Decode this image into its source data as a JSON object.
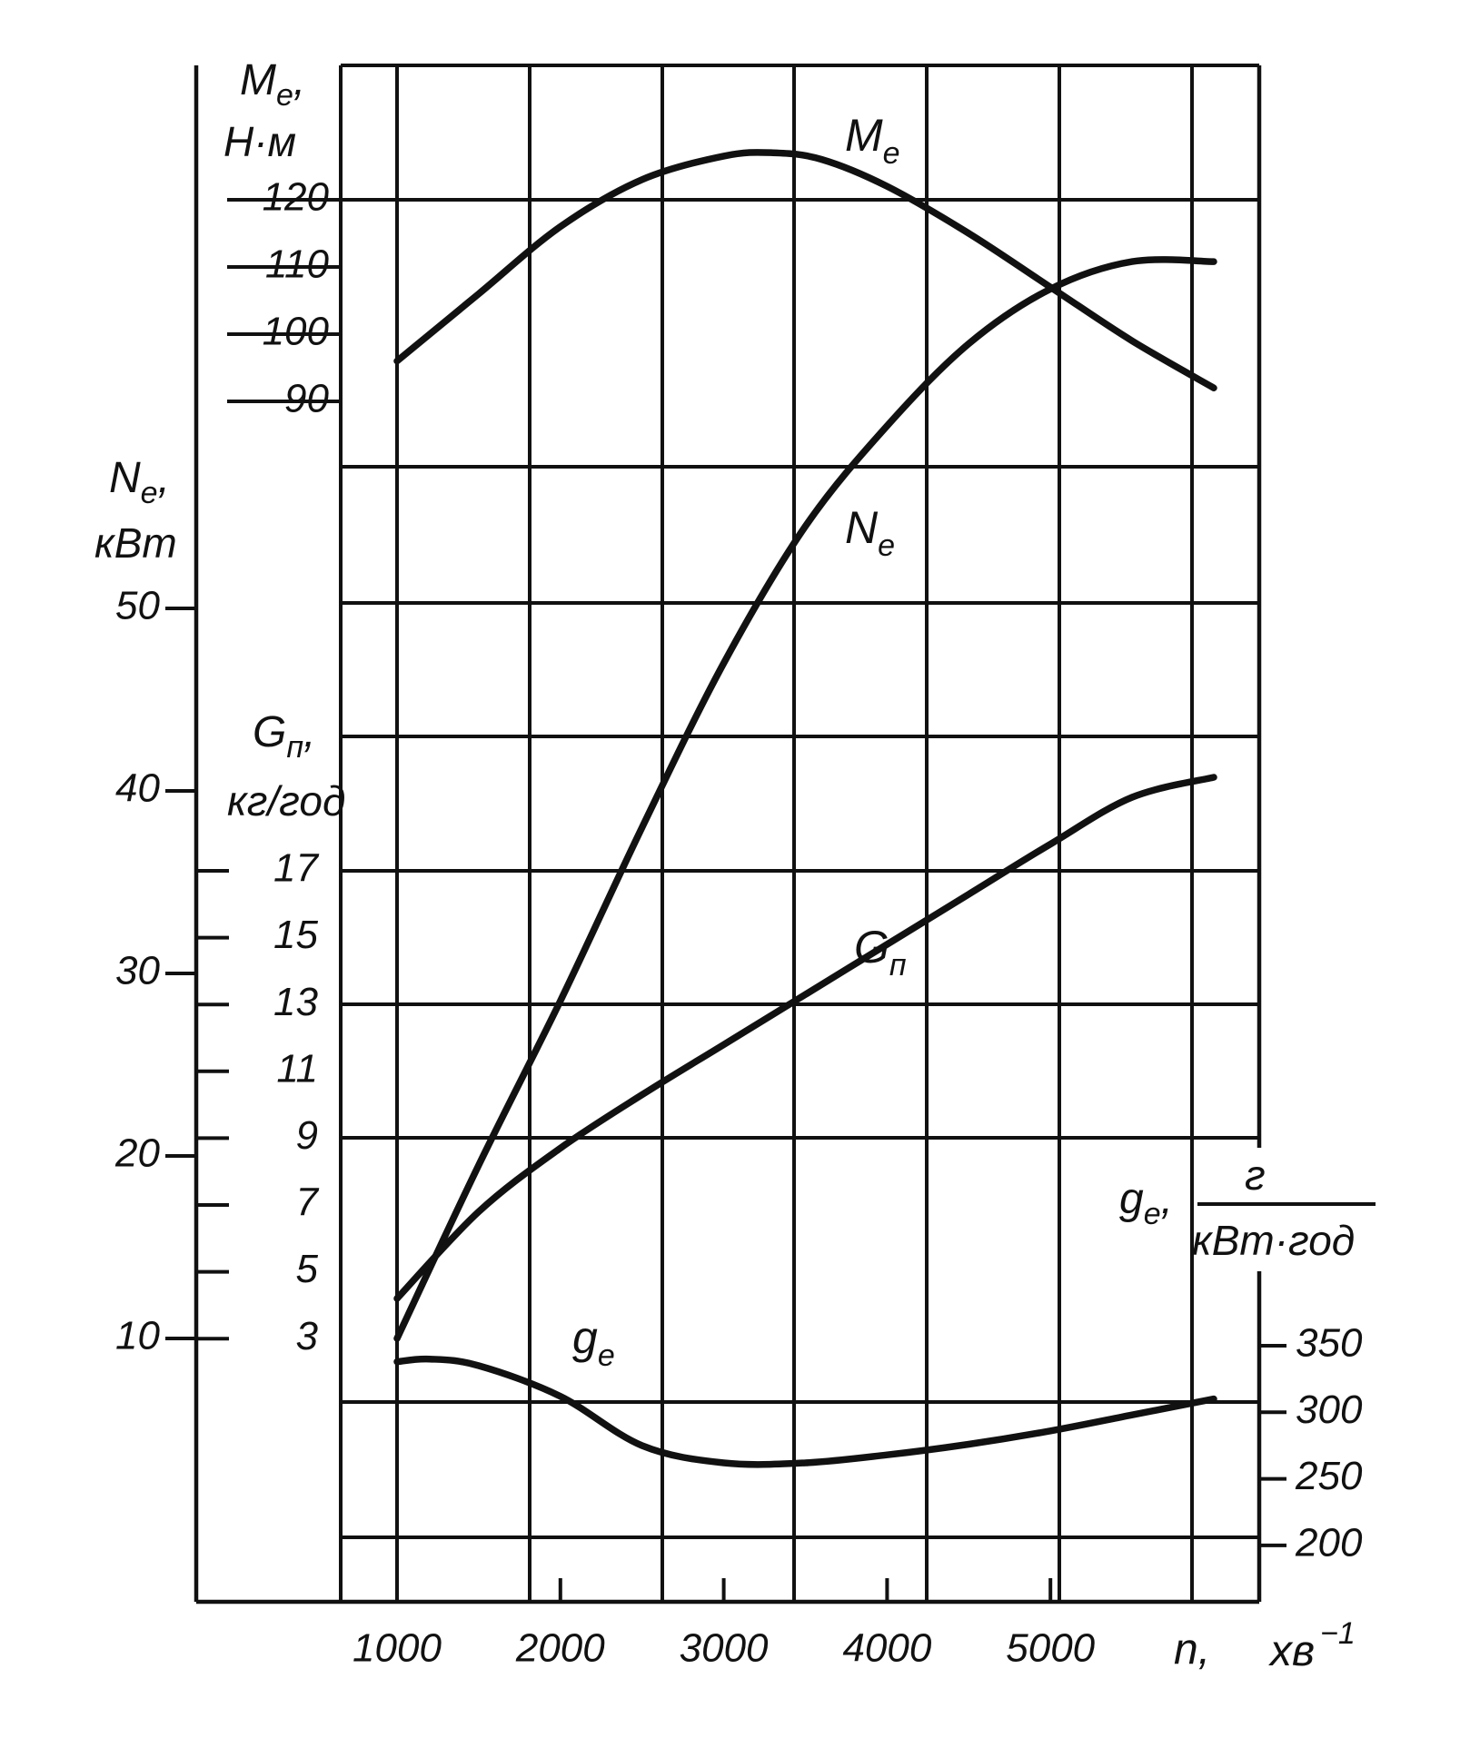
{
  "chart_data": {
    "type": "line",
    "x_axis": {
      "label": "n,",
      "unit": "хв",
      "unit_exp": "−1",
      "ticks": [
        1000,
        2000,
        3000,
        4000,
        5000
      ],
      "tick_labels": [
        "1000",
        "2000",
        "3000",
        "4000",
        "5000"
      ]
    },
    "axes": {
      "Me": {
        "name": "M",
        "sub": "e",
        "comma": ",",
        "unit": "Н·м",
        "ticks": [
          120,
          110,
          100,
          90
        ],
        "tick_labels": [
          "120",
          "110",
          "100",
          "90"
        ]
      },
      "Ne": {
        "name": "N",
        "sub": "e",
        "comma": ",",
        "unit": "кВт",
        "ticks": [
          50,
          40,
          30,
          20,
          10
        ],
        "tick_labels": [
          "50",
          "40",
          "30",
          "20",
          "10"
        ]
      },
      "Gp": {
        "name": "G",
        "sub": "п",
        "comma": ",",
        "unit": "кг/год",
        "ticks": [
          17,
          15,
          13,
          11,
          9,
          7,
          5,
          3
        ],
        "tick_labels": [
          "17",
          "15",
          "13",
          "11",
          "9",
          "7",
          "5",
          "3"
        ]
      },
      "ge": {
        "name": "g",
        "sub": "e",
        "comma": ",",
        "unit_num": "г",
        "unit_den": "кВт·год",
        "ticks": [
          350,
          300,
          250,
          200
        ],
        "tick_labels": [
          "350",
          "300",
          "250",
          "200"
        ]
      }
    },
    "series": [
      {
        "name": "M",
        "sub": "e",
        "axis": "Me",
        "x": [
          1000,
          1500,
          2000,
          2500,
          3000,
          3300,
          3600,
          4000,
          4500,
          5000,
          5500,
          6000
        ],
        "y": [
          96,
          106,
          116,
          123,
          126.5,
          127,
          126,
          122,
          115,
          107,
          99,
          92
        ]
      },
      {
        "name": "N",
        "sub": "e",
        "axis": "Ne",
        "x": [
          1000,
          1500,
          2000,
          2500,
          3000,
          3500,
          4000,
          4500,
          5000,
          5500,
          6000
        ],
        "y": [
          10,
          19.5,
          28.5,
          38,
          47,
          54.5,
          60,
          64.5,
          67.5,
          69,
          69
        ]
      },
      {
        "name": "G",
        "sub": "п",
        "axis": "Gp",
        "x": [
          1000,
          1500,
          2000,
          2500,
          3000,
          3500,
          4000,
          4500,
          5000,
          5500,
          6000
        ],
        "y": [
          4.2,
          6.8,
          8.7,
          10.3,
          11.8,
          13.3,
          14.8,
          16.3,
          17.8,
          19.2,
          19.8
        ]
      },
      {
        "name": "g",
        "sub": "e",
        "axis": "ge",
        "x": [
          1000,
          1200,
          1500,
          2000,
          2500,
          3000,
          3500,
          4000,
          4500,
          5000,
          5500,
          6000
        ],
        "y": [
          338,
          340,
          335,
          312,
          275,
          262,
          262,
          268,
          276,
          286,
          298,
          310
        ]
      }
    ],
    "grid": true
  }
}
